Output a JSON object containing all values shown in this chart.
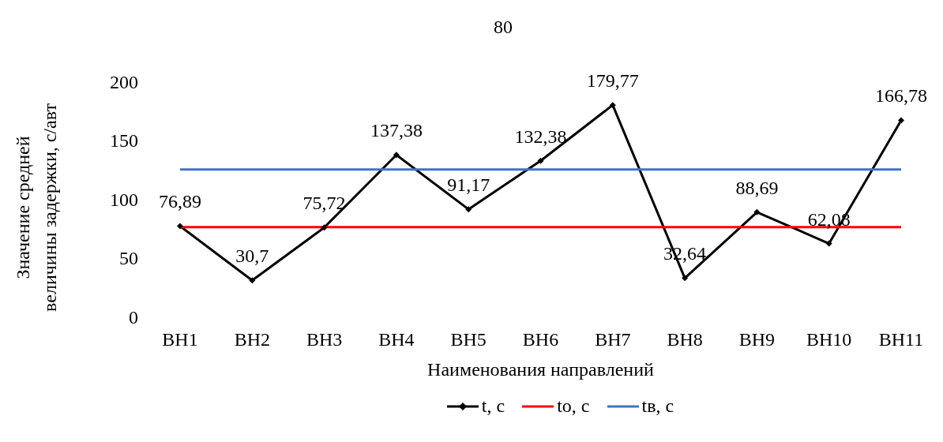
{
  "chart_data": {
    "type": "line",
    "title": "80",
    "xlabel": "Наименования направлений",
    "ylabel": "Значение средней величины задержки, с/авт",
    "categories": [
      "ВН1",
      "ВН2",
      "ВН3",
      "ВН4",
      "ВН5",
      "ВН6",
      "ВН7",
      "ВН8",
      "ВН9",
      "ВН10",
      "ВН11"
    ],
    "series": [
      {
        "name": "t, с",
        "color": "#000000",
        "marker": "diamond",
        "values": [
          76.89,
          30.7,
          75.72,
          137.38,
          91.17,
          132.38,
          179.77,
          32.64,
          88.69,
          62.08,
          166.78
        ],
        "value_labels": [
          "76,89",
          "30,7",
          "75,72",
          "137,38",
          "91,17",
          "132,38",
          "179,77",
          "32,64",
          "88,69",
          "62,08",
          "166,78"
        ]
      },
      {
        "name": "tо, с",
        "color": "#ff0000",
        "marker": "none",
        "values": [
          76,
          76,
          76,
          76,
          76,
          76,
          76,
          76,
          76,
          76,
          76
        ]
      },
      {
        "name": "tв, с",
        "color": "#4472c4",
        "marker": "none",
        "values": [
          125,
          125,
          125,
          125,
          125,
          125,
          125,
          125,
          125,
          125,
          125
        ]
      }
    ],
    "ylim": [
      0,
      200
    ],
    "yticks": [
      0,
      50,
      100,
      150,
      200
    ],
    "grid": false,
    "legend": "bottom"
  }
}
